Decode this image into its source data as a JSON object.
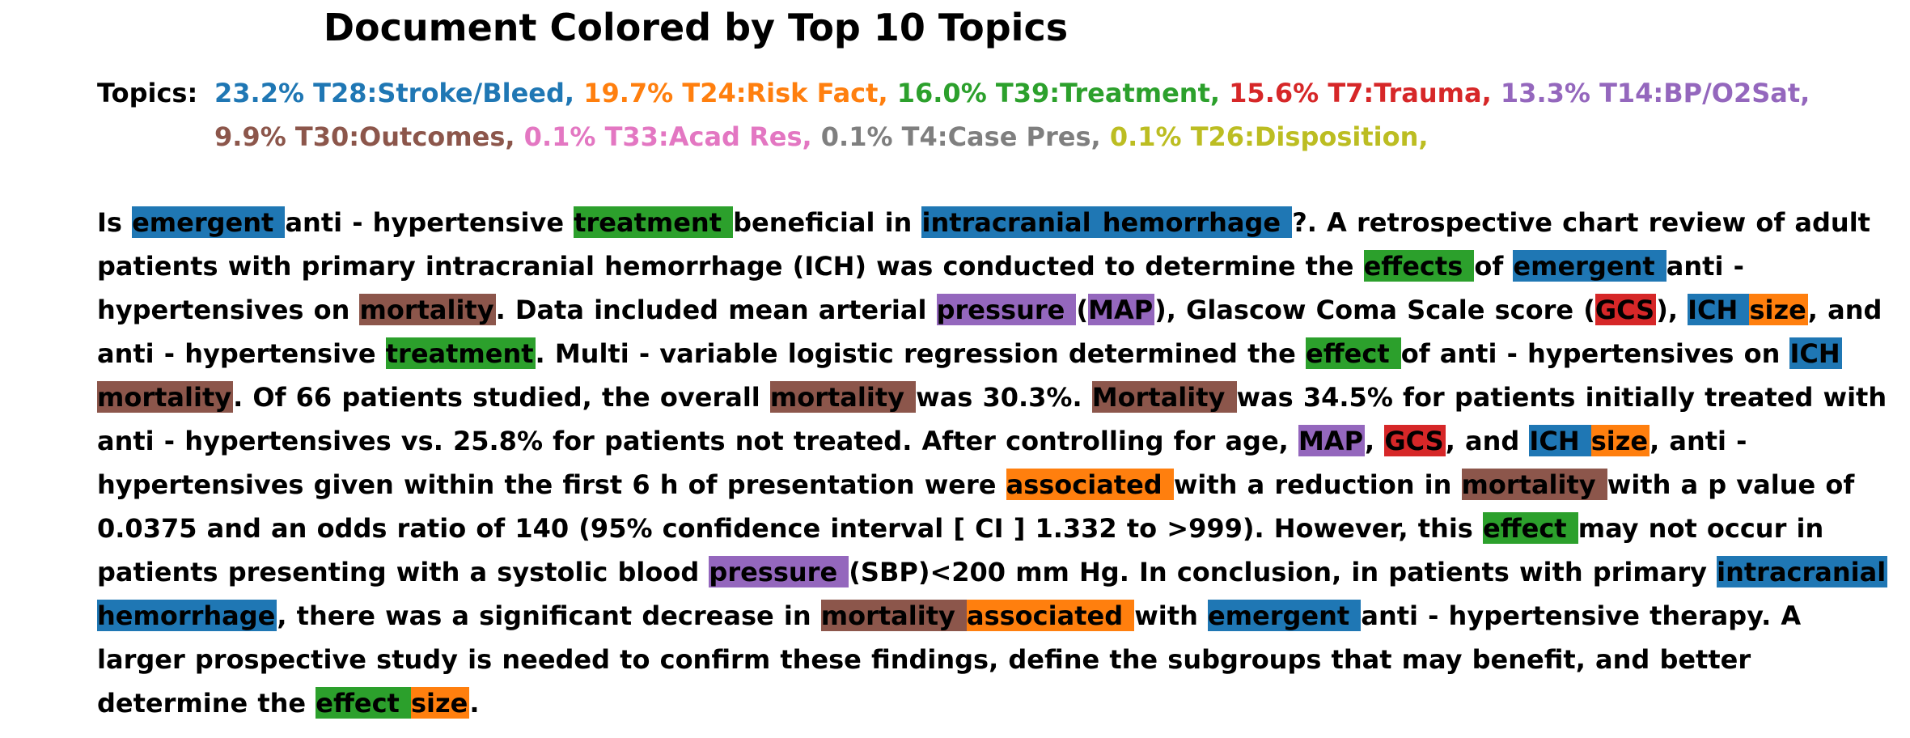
{
  "title": "Document Colored by Top 10 Topics",
  "topics_label": "Topics:",
  "topics": [
    {
      "text": "23.2% T28:Stroke/Bleed,",
      "color": "#1f77b4"
    },
    {
      "text": "19.7% T24:Risk Fact,",
      "color": "#ff7f0e"
    },
    {
      "text": "16.0% T39:Treatment,",
      "color": "#2ca02c"
    },
    {
      "text": "15.6% T7:Trauma,",
      "color": "#d62728"
    },
    {
      "text": "13.3% T14:BP/O2Sat,",
      "color": "#9467bd"
    },
    {
      "text": "9.9% T30:Outcomes,",
      "color": "#8c564b"
    },
    {
      "text": "0.1% T33:Acad Res,",
      "color": "#e377c2"
    },
    {
      "text": "0.1% T4:Case Pres,",
      "color": "#7f7f7f"
    },
    {
      "text": "0.1% T26:Disposition,",
      "color": "#bcbd22"
    }
  ],
  "topic_colors": {
    "T28": "#1f77b4",
    "T24": "#ff7f0e",
    "T39": "#2ca02c",
    "T7": "#d62728",
    "T14": "#9467bd",
    "T30": "#8c564b"
  },
  "tokens": [
    {
      "t": "Is "
    },
    {
      "t": "emergent ",
      "topic": "T28"
    },
    {
      "t": "anti - hypertensive "
    },
    {
      "t": "treatment ",
      "topic": "T39"
    },
    {
      "t": "beneficial in "
    },
    {
      "t": "intracranial ",
      "topic": "T28"
    },
    {
      "t": "hemorrhage ",
      "topic": "T28"
    },
    {
      "t": "?. A retrospective chart review of adult patients with primary intracranial hemorrhage (ICH) was conducted to determine the "
    },
    {
      "t": "effects ",
      "topic": "T39"
    },
    {
      "t": "of "
    },
    {
      "t": "emergent ",
      "topic": "T28"
    },
    {
      "t": "anti - hypertensives on "
    },
    {
      "t": "mortality",
      "topic": "T30"
    },
    {
      "t": ". Data included mean arterial "
    },
    {
      "t": "pressure ",
      "topic": "T14"
    },
    {
      "t": "("
    },
    {
      "t": "MAP",
      "topic": "T14"
    },
    {
      "t": "), Glascow Coma Scale score ("
    },
    {
      "t": "GCS",
      "topic": "T7"
    },
    {
      "t": "), "
    },
    {
      "t": "ICH ",
      "topic": "T28"
    },
    {
      "t": "size",
      "topic": "T24"
    },
    {
      "t": ", and anti - hypertensive "
    },
    {
      "t": "treatment",
      "topic": "T39"
    },
    {
      "t": ". Multi - variable logistic regression determined the "
    },
    {
      "t": "effect ",
      "topic": "T39"
    },
    {
      "t": "of anti - hypertensives on "
    },
    {
      "t": "ICH ",
      "topic": "T28"
    },
    {
      "t": "mortality",
      "topic": "T30"
    },
    {
      "t": ". Of 66 patients studied, the overall "
    },
    {
      "t": "mortality ",
      "topic": "T30"
    },
    {
      "t": "was 30.3%. "
    },
    {
      "t": "Mortality ",
      "topic": "T30"
    },
    {
      "t": "was 34.5% for patients initially treated with anti - hypertensives vs. 25.8% for patients not treated. After controlling for age, "
    },
    {
      "t": "MAP",
      "topic": "T14"
    },
    {
      "t": ", "
    },
    {
      "t": "GCS",
      "topic": "T7"
    },
    {
      "t": ", and "
    },
    {
      "t": "ICH ",
      "topic": "T28"
    },
    {
      "t": "size",
      "topic": "T24"
    },
    {
      "t": ", anti - hypertensives given within the first 6 h of presentation were "
    },
    {
      "t": "associated ",
      "topic": "T24"
    },
    {
      "t": "with a reduction in "
    },
    {
      "t": "mortality ",
      "topic": "T30"
    },
    {
      "t": "with a p value of 0.0375 and an odds ratio of 140 (95% confidence interval [ CI ] 1.332 to >999). However, this "
    },
    {
      "t": "effect ",
      "topic": "T39"
    },
    {
      "t": "may not occur in patients presenting with a systolic blood "
    },
    {
      "t": "pressure ",
      "topic": "T14"
    },
    {
      "t": "(SBP)<200 mm Hg. In conclusion, in patients with primary "
    },
    {
      "t": "intracranial ",
      "topic": "T28"
    },
    {
      "t": "hemorrhage",
      "topic": "T28"
    },
    {
      "t": ", there was a significant decrease in "
    },
    {
      "t": "mortality ",
      "topic": "T30"
    },
    {
      "t": "associated ",
      "topic": "T24"
    },
    {
      "t": "with "
    },
    {
      "t": "emergent ",
      "topic": "T28"
    },
    {
      "t": "anti - hypertensive therapy. A larger prospective study is needed to confirm these findings, define the subgroups that may benefit, and better determine the "
    },
    {
      "t": "effect ",
      "topic": "T39"
    },
    {
      "t": "size",
      "topic": "T24"
    },
    {
      "t": "."
    }
  ]
}
